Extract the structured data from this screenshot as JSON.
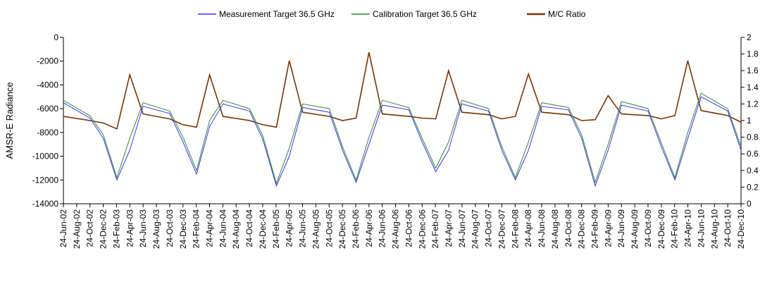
{
  "chart_data": {
    "type": "line",
    "title": "",
    "ylabel": "AMSR-E Radiance",
    "ylim": [
      -14000,
      0
    ],
    "y_ticks": [
      0,
      -2000,
      -4000,
      -6000,
      -8000,
      -10000,
      -12000,
      -14000
    ],
    "y_tick_labels": [
      "0",
      "-2000",
      "-4000",
      "-6000",
      "-8000",
      "-10000",
      "-12000",
      "-14000"
    ],
    "y2lim": [
      0,
      2
    ],
    "y2_ticks": [
      2,
      1.8,
      1.6,
      1.4,
      1.2,
      1,
      0.8,
      0.6,
      0.4,
      0.2,
      0
    ],
    "y2_tick_labels": [
      "2",
      "1.8",
      "1.6",
      "1.4",
      "1.2",
      "1",
      "0.8",
      "0.6",
      "0.4",
      "0.2",
      "0"
    ],
    "x_tick_labels": [
      "24-Jun-02",
      "24-Aug-02",
      "24-Oct-02",
      "24-Dec-02",
      "24-Feb-03",
      "24-Apr-03",
      "24-Jun-03",
      "24-Aug-03",
      "24-Oct-03",
      "24-Dec-03",
      "24-Feb-04",
      "24-Apr-04",
      "24-Jun-04",
      "24-Aug-04",
      "24-Oct-04",
      "24-Dec-04",
      "24-Feb-05",
      "24-Apr-05",
      "24-Jun-05",
      "24-Aug-05",
      "24-Oct-05",
      "24-Dec-05",
      "24-Feb-06",
      "24-Apr-06",
      "24-Jun-06",
      "24-Aug-06",
      "24-Oct-06",
      "24-Dec-06",
      "24-Feb-07",
      "24-Apr-07",
      "24-Jun-07",
      "24-Aug-07",
      "24-Oct-07",
      "24-Dec-07",
      "24-Feb-08",
      "24-Apr-08",
      "24-Jun-08",
      "24-Aug-08",
      "24-Oct-08",
      "24-Dec-08",
      "24-Feb-09",
      "24-Apr-09",
      "24-Jun-09",
      "24-Aug-09",
      "24-Oct-09",
      "24-Dec-09",
      "24-Feb-10",
      "24-Apr-10",
      "24-Jun-10",
      "24-Aug-10",
      "24-Oct-10",
      "24-Dec-10"
    ],
    "grid": false,
    "legend_position": "top-center",
    "series": [
      {
        "name": "Measurement Target 36.5 GHz",
        "axis": "left",
        "color": "#3333ff",
        "x": [
          "2002-06-24",
          "2002-10-24",
          "2002-12-24",
          "2003-02-24",
          "2003-04-24",
          "2003-06-24",
          "2003-10-24",
          "2003-12-24",
          "2004-02-24",
          "2004-04-24",
          "2004-06-24",
          "2004-10-24",
          "2004-12-24",
          "2005-02-24",
          "2005-04-24",
          "2005-06-24",
          "2005-10-24",
          "2005-12-24",
          "2006-02-24",
          "2006-04-24",
          "2006-06-24",
          "2006-10-24",
          "2006-12-24",
          "2007-02-24",
          "2007-04-24",
          "2007-06-24",
          "2007-10-24",
          "2007-12-24",
          "2008-02-24",
          "2008-04-24",
          "2008-06-24",
          "2008-10-24",
          "2008-12-24",
          "2009-02-24",
          "2009-04-24",
          "2009-06-24",
          "2009-10-24",
          "2009-12-24",
          "2010-02-24",
          "2010-04-24",
          "2010-06-24",
          "2010-10-24",
          "2010-12-24"
        ],
        "y": [
          -5500,
          -6800,
          -8500,
          -12000,
          -9500,
          -5800,
          -6400,
          -8800,
          -11500,
          -7500,
          -5600,
          -6200,
          -8600,
          -12500,
          -10000,
          -5900,
          -6300,
          -9500,
          -12200,
          -9000,
          -5700,
          -6100,
          -8800,
          -11300,
          -9500,
          -5600,
          -6200,
          -9500,
          -12000,
          -9500,
          -5800,
          -6100,
          -8500,
          -12500,
          -9500,
          -5700,
          -6200,
          -9200,
          -12000,
          -8500,
          -5000,
          -6200,
          -9500
        ]
      },
      {
        "name": "Calibration Target 36.5 GHz",
        "axis": "left",
        "color": "#2e8b2e",
        "x": [
          "2002-06-24",
          "2002-10-24",
          "2002-12-24",
          "2003-02-24",
          "2003-04-24",
          "2003-06-24",
          "2003-10-24",
          "2003-12-24",
          "2004-02-24",
          "2004-04-24",
          "2004-06-24",
          "2004-10-24",
          "2004-12-24",
          "2005-02-24",
          "2005-04-24",
          "2005-06-24",
          "2005-10-24",
          "2005-12-24",
          "2006-02-24",
          "2006-04-24",
          "2006-06-24",
          "2006-10-24",
          "2006-12-24",
          "2007-02-24",
          "2007-04-24",
          "2007-06-24",
          "2007-10-24",
          "2007-12-24",
          "2008-02-24",
          "2008-04-24",
          "2008-06-24",
          "2008-10-24",
          "2008-12-24",
          "2009-02-24",
          "2009-04-24",
          "2009-06-24",
          "2009-10-24",
          "2009-12-24",
          "2010-02-24",
          "2010-04-24",
          "2010-06-24",
          "2010-10-24",
          "2010-12-24"
        ],
        "y": [
          -5300,
          -6600,
          -8200,
          -11800,
          -8500,
          -5500,
          -6200,
          -8400,
          -11200,
          -7000,
          -5300,
          -6000,
          -8300,
          -12300,
          -9300,
          -5600,
          -6000,
          -9200,
          -12000,
          -8400,
          -5300,
          -5900,
          -8500,
          -11000,
          -8800,
          -5300,
          -6000,
          -9200,
          -11800,
          -8800,
          -5500,
          -5900,
          -8200,
          -12200,
          -9000,
          -5400,
          -6000,
          -8900,
          -11800,
          -8000,
          -4700,
          -6000,
          -9200
        ]
      },
      {
        "name": "M/C Ratio",
        "axis": "right",
        "color": "#7b3300",
        "x": [
          "2002-06-24",
          "2002-10-24",
          "2002-12-24",
          "2003-02-24",
          "2003-04-24",
          "2003-06-24",
          "2003-10-24",
          "2003-12-24",
          "2004-02-24",
          "2004-04-24",
          "2004-06-24",
          "2004-10-24",
          "2004-12-24",
          "2005-02-24",
          "2005-04-24",
          "2005-06-24",
          "2005-10-24",
          "2005-12-24",
          "2006-02-24",
          "2006-04-24",
          "2006-06-24",
          "2006-10-24",
          "2006-12-24",
          "2007-02-24",
          "2007-04-24",
          "2007-06-24",
          "2007-10-24",
          "2007-12-24",
          "2008-02-24",
          "2008-04-24",
          "2008-06-24",
          "2008-10-24",
          "2008-12-24",
          "2009-02-24",
          "2009-04-24",
          "2009-06-24",
          "2009-10-24",
          "2009-12-24",
          "2010-02-24",
          "2010-04-24",
          "2010-06-24",
          "2010-10-24",
          "2010-12-24"
        ],
        "y": [
          1.05,
          1.0,
          0.97,
          0.9,
          1.55,
          1.08,
          1.02,
          0.95,
          0.92,
          1.55,
          1.05,
          1.0,
          0.95,
          0.92,
          1.72,
          1.1,
          1.05,
          1.0,
          1.03,
          1.82,
          1.08,
          1.05,
          1.03,
          1.02,
          1.6,
          1.1,
          1.07,
          1.02,
          1.05,
          1.56,
          1.1,
          1.07,
          1.0,
          1.01,
          1.3,
          1.08,
          1.06,
          1.02,
          1.06,
          1.72,
          1.12,
          1.06,
          0.98
        ]
      }
    ]
  }
}
